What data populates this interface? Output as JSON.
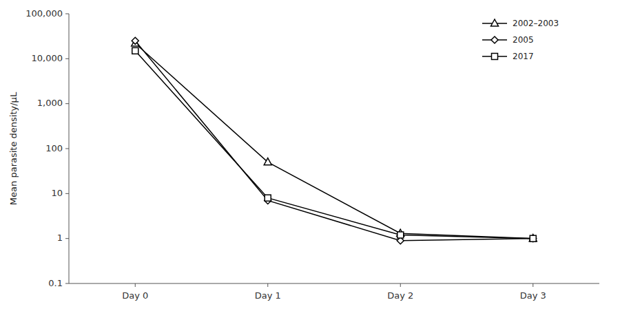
{
  "chart_data": {
    "type": "line",
    "categories": [
      "Day 0",
      "Day 1",
      "Day 2",
      "Day 3"
    ],
    "y_label": "Mean parasite density/μL",
    "log": "y",
    "ylim": [
      0.1,
      100000
    ],
    "yticks": [
      0.1,
      1,
      10,
      100,
      {
        "value": 1000,
        "label": "1,000"
      },
      {
        "value": 10000,
        "label": "10,000"
      },
      {
        "value": 100000,
        "label": "100,000"
      }
    ],
    "grid": false,
    "legend": "upper right",
    "series": [
      {
        "name": "2002–2003",
        "color": "#000000",
        "marker": "triangle",
        "values": [
          22000,
          50,
          1.3,
          1.0
        ]
      },
      {
        "name": "2005",
        "color": "#000000",
        "marker": "diamond",
        "values": [
          25000,
          7.0,
          0.9,
          1.0
        ]
      },
      {
        "name": "2017",
        "color": "#000000",
        "marker": "square",
        "values": [
          15000,
          8.0,
          1.2,
          1.0
        ]
      }
    ]
  }
}
